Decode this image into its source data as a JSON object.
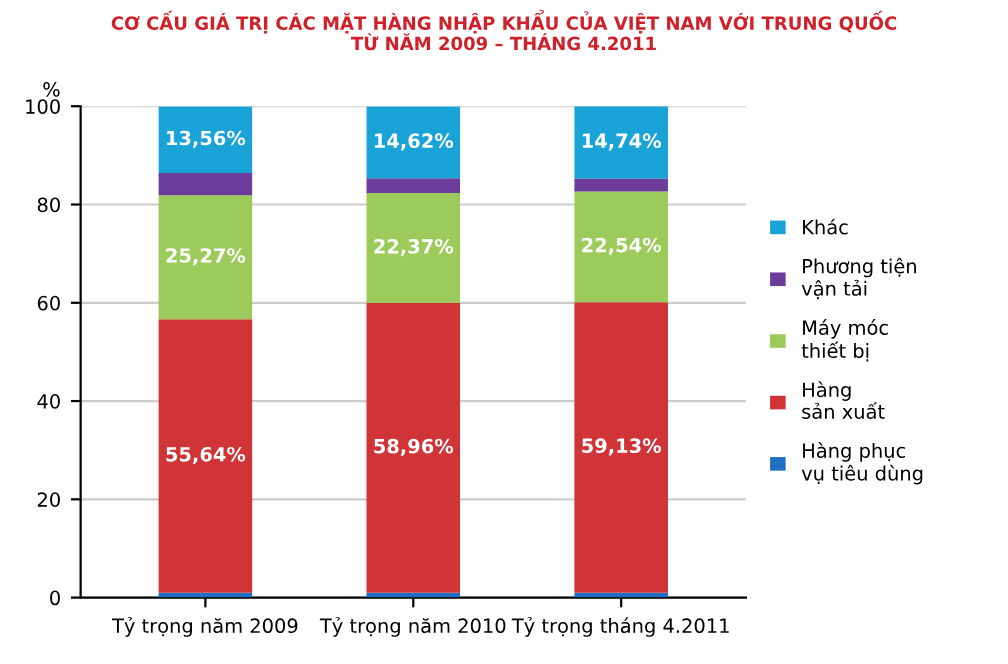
{
  "chart_data": {
    "type": "bar",
    "title": "CƠ CẤU GIÁ TRỊ CÁC MẶT HÀNG NHẬP KHẨU CỦA VIỆT NAM VỚI TRUNG QUỐC\nTỪ NĂM 2009 – THÁNG 4.2011",
    "ylabel": "%",
    "categories": [
      "Tỷ trọng năm 2009",
      "Tỷ trọng năm 2010",
      "Tỷ trọng tháng 4.2011"
    ],
    "stacked": true,
    "series": [
      {
        "name": "Hàng phục\nvụ tiêu dùng",
        "color": "#1f6fc4",
        "values": [
          1.0,
          1.0,
          1.0
        ]
      },
      {
        "name": "Hàng\nsản xuất",
        "color": "#d13437",
        "values": [
          55.64,
          58.96,
          59.13
        ],
        "value_labels": [
          "55,64%",
          "58,96%",
          "59,13%"
        ]
      },
      {
        "name": "Máy móc\nthiết bị",
        "color": "#9ccb5b",
        "values": [
          25.27,
          22.37,
          22.54
        ],
        "value_labels": [
          "25,27%",
          "22,37%",
          "22,54%"
        ]
      },
      {
        "name": "Phương tiện\nvận tải",
        "color": "#6a3d9a",
        "values": [
          4.5,
          3.0,
          2.6
        ]
      },
      {
        "name": "Khác",
        "color": "#1aa3d6",
        "values": [
          13.56,
          14.62,
          14.74
        ],
        "value_labels": [
          "13,56%",
          "14,62%",
          "14,74%"
        ]
      }
    ],
    "ylim": [
      0,
      100
    ],
    "yticks": [
      0,
      20,
      40,
      60,
      80,
      100
    ],
    "grid": "y",
    "legend": "right"
  }
}
